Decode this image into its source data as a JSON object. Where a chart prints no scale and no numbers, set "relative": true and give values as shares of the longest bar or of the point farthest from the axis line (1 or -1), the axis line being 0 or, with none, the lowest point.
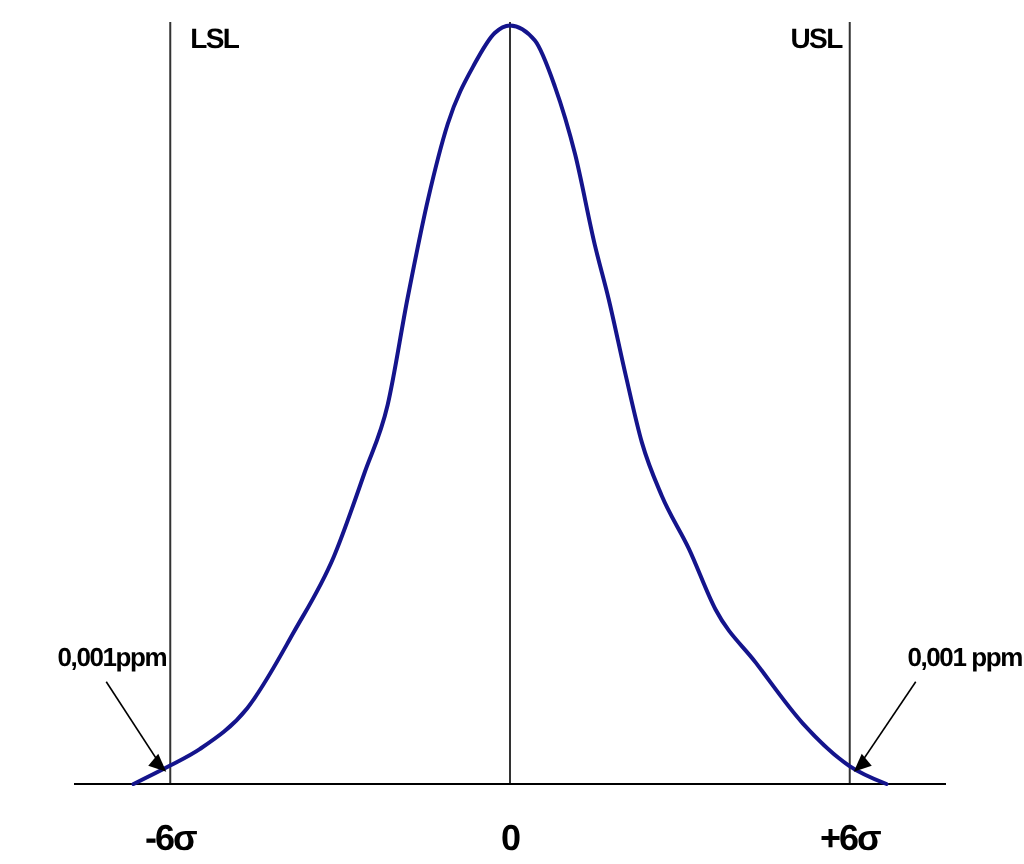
{
  "chart_data": {
    "type": "line",
    "relative": true,
    "xlim": [
      -7.7,
      7.7
    ],
    "xticks": [
      {
        "value": -6,
        "label": "-6σ"
      },
      0,
      {
        "value": 6,
        "label": "+6σ"
      }
    ],
    "tick_labels": "x",
    "grid": false,
    "line_style": "solid",
    "series": [
      {
        "color": "#14148c",
        "x": [
          -6.65,
          -6.01,
          -5.48,
          -4.64,
          -3.82,
          -3.11,
          -2.57,
          -2.16,
          -1.81,
          -1.45,
          -1.1,
          -0.62,
          -0.27,
          0,
          0.44,
          0.79,
          1.15,
          1.5,
          1.74,
          2.04,
          2.33,
          2.68,
          3.16,
          3.63,
          4.34,
          5.17,
          5.99,
          6.65
        ],
        "values": [
          0,
          0.024,
          0.046,
          0.1,
          0.2,
          0.3,
          0.41,
          0.5,
          0.64,
          0.77,
          0.87,
          0.95,
          0.99,
          1,
          0.98,
          0.92,
          0.83,
          0.71,
          0.64,
          0.54,
          0.45,
          0.38,
          0.31,
          0.23,
          0.16,
          0.08,
          0.024,
          0
        ]
      }
    ],
    "ref_lines": [
      {
        "axis": "x",
        "value": -6,
        "label": "LSL",
        "color": "#333333"
      },
      {
        "axis": "x",
        "value": 0,
        "color": "#333333"
      },
      {
        "axis": "x",
        "value": 6,
        "label": "USL",
        "color": "#333333"
      }
    ],
    "annotations": [
      {
        "text": "0,001ppm",
        "x": -6,
        "y": 0.024
      },
      {
        "text": "0,001 ppm",
        "x": 6,
        "y": 0.024
      }
    ]
  }
}
